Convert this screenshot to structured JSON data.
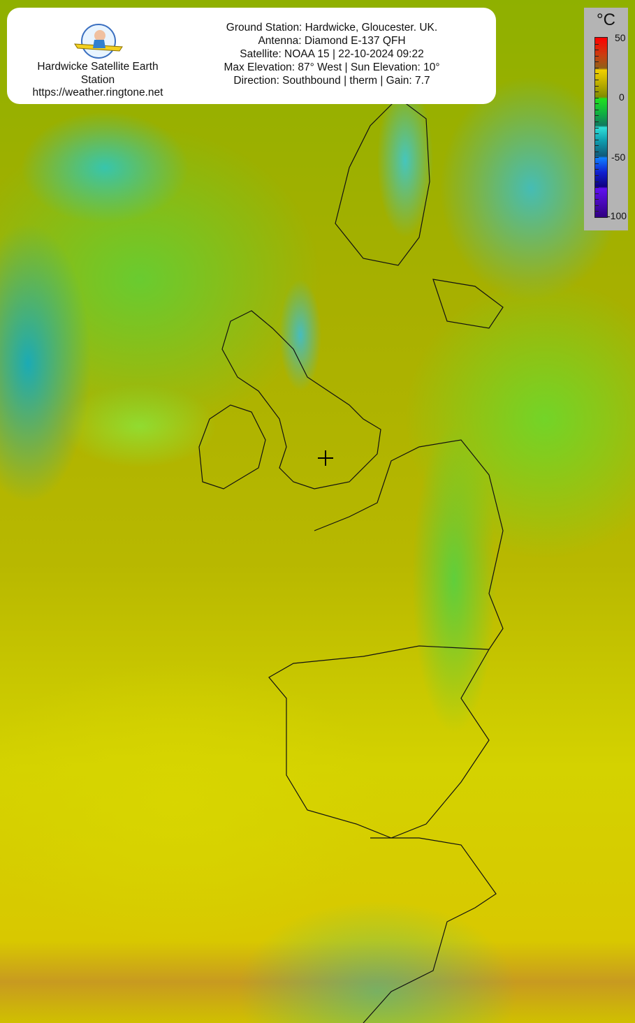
{
  "header": {
    "station_name": "Hardwicke Satellite Earth Station",
    "station_url": "https://weather.ringtone.net",
    "logo_icon": "plane-pilot-logo-icon",
    "details": [
      "Ground Station: Hardwicke, Gloucester. UK.",
      "Antenna: Diamond E-137 QFH",
      "Satellite: NOAA 15 | 22-10-2024 09:22",
      "Max Elevation: 87° West | Sun Elevation: 10°",
      "Direction: Southbound | therm | Gain: 7.7"
    ]
  },
  "legend": {
    "unit": "°C",
    "labels": [
      "50",
      "0",
      "-50",
      "-100"
    ],
    "range": [
      -100,
      50
    ],
    "colors": [
      "#ff0000",
      "#906018",
      "#f0d000",
      "#808c00",
      "#20e020",
      "#30e0d8",
      "#1080ff",
      "#6010f0"
    ]
  },
  "map": {
    "marker_icon": "crosshair-icon"
  }
}
